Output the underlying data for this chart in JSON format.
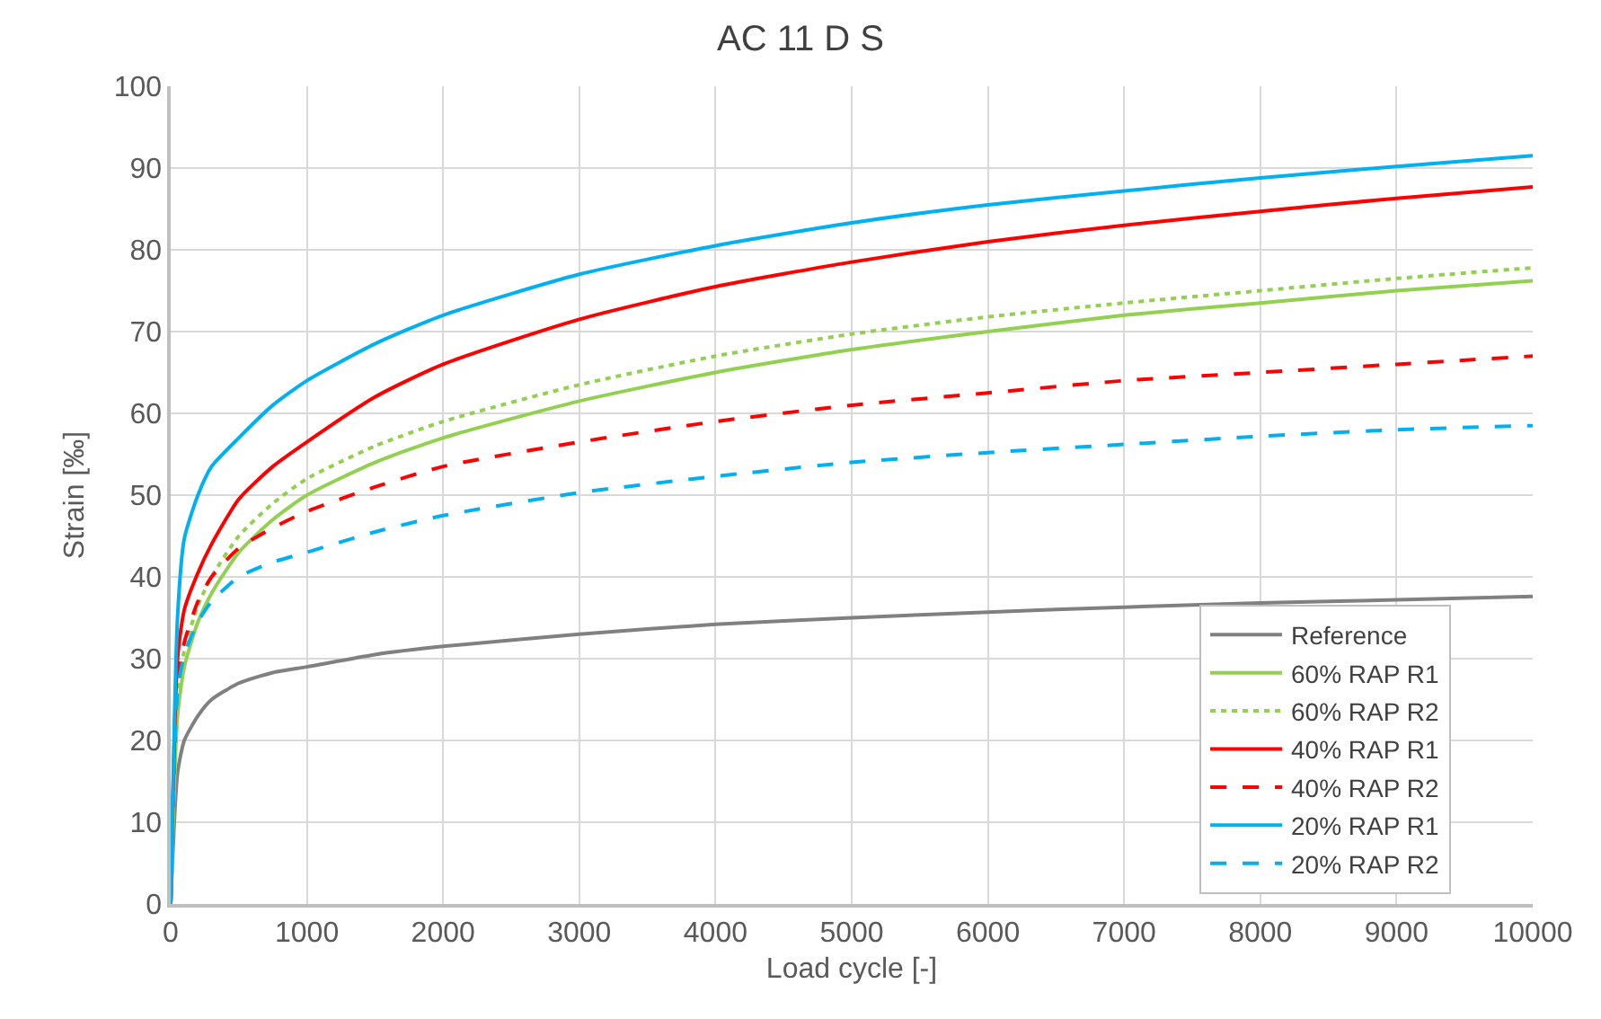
{
  "chart_data": {
    "type": "line",
    "title": "AC 11 D S",
    "xlabel": "Load cycle [-]",
    "ylabel": "Strain [‰]",
    "x": [
      0,
      50,
      100,
      200,
      300,
      500,
      750,
      1000,
      1500,
      2000,
      3000,
      4000,
      5000,
      6000,
      7000,
      8000,
      9000,
      10000
    ],
    "xlim": [
      0,
      10000
    ],
    "xticks": [
      0,
      1000,
      2000,
      3000,
      4000,
      5000,
      6000,
      7000,
      8000,
      9000,
      10000
    ],
    "ylim": [
      0,
      100
    ],
    "yticks": [
      0,
      10,
      20,
      30,
      40,
      50,
      60,
      70,
      80,
      90,
      100
    ],
    "grid": true,
    "legend": "bottom right",
    "marker": "none",
    "series": [
      {
        "name": "Reference",
        "color": "#808080",
        "line_style": "solid",
        "values": [
          0,
          16,
          20,
          23,
          25,
          27,
          28.3,
          29,
          30.5,
          31.5,
          33,
          34.2,
          35,
          35.7,
          36.3,
          36.8,
          37.2,
          37.6
        ]
      },
      {
        "name": "60% RAP R1",
        "color": "#92d050",
        "line_style": "solid",
        "values": [
          0,
          23,
          29,
          34.5,
          38,
          43,
          47,
          50,
          54,
          57,
          61.5,
          65,
          67.8,
          70,
          72,
          73.5,
          75,
          76.2
        ]
      },
      {
        "name": "60% RAP R2",
        "color": "#92d050",
        "line_style": "dotted",
        "values": [
          0,
          25,
          31,
          36.5,
          40,
          45,
          49,
          52,
          56,
          59,
          63.5,
          67,
          69.7,
          71.8,
          73.5,
          75,
          76.5,
          77.8
        ]
      },
      {
        "name": "40% RAP R1",
        "color": "#ff0000",
        "line_style": "solid",
        "values": [
          0,
          30,
          36,
          40.5,
          44,
          49.5,
          53.5,
          56.5,
          62,
          66,
          71.5,
          75.5,
          78.5,
          81,
          83,
          84.7,
          86.3,
          87.7
        ]
      },
      {
        "name": "40% RAP R2",
        "color": "#ff0000",
        "line_style": "dashed",
        "values": [
          0,
          27,
          32,
          37,
          40,
          43.5,
          46,
          48,
          51,
          53.5,
          56.5,
          59,
          61,
          62.5,
          64,
          65,
          66,
          67
        ]
      },
      {
        "name": "20% RAP R1",
        "color": "#00b0f0",
        "line_style": "solid",
        "values": [
          0,
          35,
          44.7,
          50,
          53.5,
          57,
          61,
          64,
          68.5,
          72,
          77,
          80.5,
          83.3,
          85.5,
          87.2,
          88.8,
          90.2,
          91.5
        ]
      },
      {
        "name": "20% RAP R2",
        "color": "#00b0f0",
        "line_style": "dashed",
        "values": [
          0,
          26,
          30.5,
          34.5,
          37,
          40,
          41.8,
          43,
          45.5,
          47.5,
          50.3,
          52.3,
          54,
          55.2,
          56.2,
          57.2,
          58,
          58.5
        ]
      }
    ]
  }
}
